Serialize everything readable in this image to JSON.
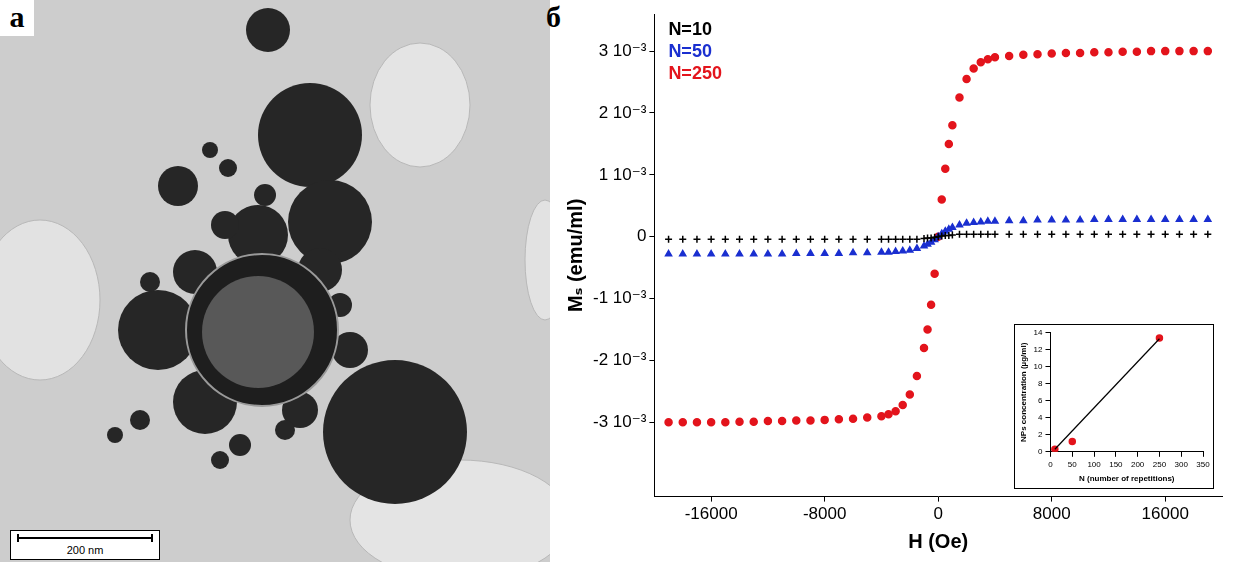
{
  "panel_letters": [
    "а",
    "б"
  ],
  "image": {
    "scale_bar": "200 nm"
  },
  "chart_data": [
    {
      "type": "scatter",
      "x_label": "H (Oe)",
      "y_label": "Mₛ (emu/ml)",
      "xlim": [
        -20000,
        20000
      ],
      "xticks": [
        -16000,
        -8000,
        0,
        8000,
        16000
      ],
      "ylim": [
        -0.0042,
        0.0036
      ],
      "yticks": [
        {
          "value": -0.003,
          "label": "-3 10⁻³"
        },
        {
          "value": -0.002,
          "label": "-2 10⁻³"
        },
        {
          "value": -0.001,
          "label": "-1 10⁻³"
        },
        0,
        {
          "value": 0.001,
          "label": "1 10⁻³"
        },
        {
          "value": 0.002,
          "label": "2 10⁻³"
        },
        {
          "value": 0.003,
          "label": "3 10⁻³"
        }
      ],
      "grid": false,
      "legend": "upper left",
      "x": [
        -19000,
        -18000,
        -17000,
        -16000,
        -15000,
        -14000,
        -13000,
        -12000,
        -11000,
        -10000,
        -9000,
        -8000,
        -7000,
        -6000,
        -5000,
        -4000,
        -3500,
        -3000,
        -2500,
        -2000,
        -1500,
        -1000,
        -750,
        -500,
        -250,
        0,
        250,
        500,
        750,
        1000,
        1500,
        2000,
        2500,
        3000,
        3500,
        4000,
        5000,
        6000,
        7000,
        8000,
        9000,
        10000,
        11000,
        12000,
        13000,
        14000,
        15000,
        16000,
        17000,
        18000,
        19000
      ],
      "series": [
        {
          "name": "N=10",
          "color": "#000000",
          "marker": "cross",
          "values": [
            -4e-05,
            -4e-05,
            -4e-05,
            -4e-05,
            -4e-05,
            -4e-05,
            -4e-05,
            -4e-05,
            -4e-05,
            -4e-05,
            -4e-05,
            -4e-05,
            -4e-05,
            -4e-05,
            -4e-05,
            -4e-05,
            -4e-05,
            -4e-05,
            -4e-05,
            -4e-05,
            -4e-05,
            -3e-05,
            -2e-05,
            -2e-05,
            -1e-05,
            0,
            1e-05,
            2e-05,
            2e-05,
            3e-05,
            4e-05,
            4e-05,
            4e-05,
            4e-05,
            4e-05,
            4e-05,
            4e-05,
            4e-05,
            4e-05,
            4e-05,
            4e-05,
            4e-05,
            4e-05,
            4e-05,
            4e-05,
            4e-05,
            4e-05,
            4e-05,
            4e-05,
            4e-05,
            4e-05
          ]
        },
        {
          "name": "N=50",
          "color": "#1a2fd0",
          "marker": "triangle",
          "values": [
            -0.00028,
            -0.00028,
            -0.00028,
            -0.00028,
            -0.00028,
            -0.00028,
            -0.00028,
            -0.00028,
            -0.00028,
            -0.00027,
            -0.00027,
            -0.00027,
            -0.00027,
            -0.00026,
            -0.00026,
            -0.00025,
            -0.00025,
            -0.00024,
            -0.00023,
            -0.00022,
            -0.00019,
            -0.00015,
            -0.00012,
            -9e-05,
            -5e-05,
            0,
            5e-05,
            9e-05,
            0.00012,
            0.00015,
            0.00019,
            0.00022,
            0.00023,
            0.00024,
            0.00025,
            0.00025,
            0.00026,
            0.00026,
            0.00027,
            0.00027,
            0.00027,
            0.00027,
            0.00028,
            0.00028,
            0.00028,
            0.00028,
            0.00028,
            0.00028,
            0.00028,
            0.00028,
            0.00028
          ]
        },
        {
          "name": "N=250",
          "color": "#e3141c",
          "marker": "circle",
          "values": [
            -0.003,
            -0.003,
            -0.003,
            -0.003,
            -0.003,
            -0.00299,
            -0.00299,
            -0.00298,
            -0.00298,
            -0.00297,
            -0.00297,
            -0.00296,
            -0.00295,
            -0.00294,
            -0.00292,
            -0.0029,
            -0.00287,
            -0.00282,
            -0.00272,
            -0.00255,
            -0.00225,
            -0.0018,
            -0.0015,
            -0.0011,
            -0.0006,
            0,
            0.0006,
            0.0011,
            0.0015,
            0.0018,
            0.00225,
            0.00255,
            0.00272,
            0.00282,
            0.00287,
            0.0029,
            0.00292,
            0.00294,
            0.00295,
            0.00296,
            0.00297,
            0.00297,
            0.00298,
            0.00298,
            0.00299,
            0.00299,
            0.003,
            0.003,
            0.003,
            0.003,
            0.003
          ]
        }
      ]
    },
    {
      "type": "scatter",
      "x_label": "N (number of repetitions)",
      "y_label": "NPs concentration (µg/ml)",
      "xlim": [
        0,
        350
      ],
      "xticks": [
        0,
        50,
        100,
        150,
        200,
        250,
        300,
        350
      ],
      "ylim": [
        0,
        14
      ],
      "yticks": [
        0,
        2,
        4,
        6,
        8,
        10,
        12,
        14
      ],
      "grid": false,
      "series": [
        {
          "type": "line",
          "color": "#000000",
          "x": [
            10,
            250
          ],
          "values": [
            0.3,
            13.3
          ]
        },
        {
          "color": "#e3141c",
          "marker": "circle",
          "x": [
            10,
            50,
            250
          ],
          "values": [
            0.3,
            1.2,
            13.4
          ]
        }
      ]
    }
  ]
}
